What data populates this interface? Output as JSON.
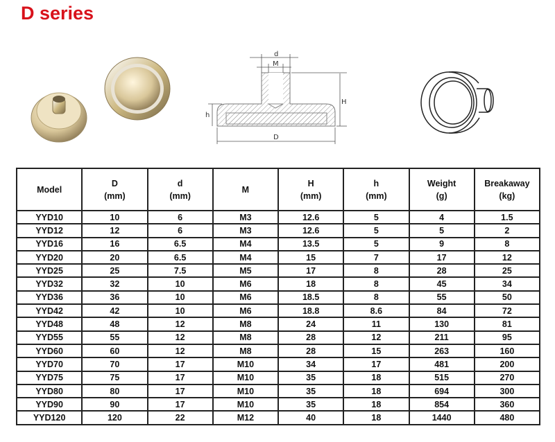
{
  "title": "D series",
  "diagram": {
    "label_d": "d",
    "label_M": "M",
    "label_H": "H",
    "label_h": "h",
    "label_D": "D"
  },
  "colors": {
    "title": "#d8121b",
    "border": "#222222"
  },
  "table": {
    "headers": [
      {
        "line1": "Model",
        "line2": ""
      },
      {
        "line1": "D",
        "line2": "(mm)"
      },
      {
        "line1": "d",
        "line2": "(mm)"
      },
      {
        "line1": "M",
        "line2": ""
      },
      {
        "line1": "H",
        "line2": "(mm)"
      },
      {
        "line1": "h",
        "line2": "(mm)"
      },
      {
        "line1": "Weight",
        "line2": "(g)"
      },
      {
        "line1": "Breakaway",
        "line2": "(kg)"
      }
    ],
    "rows": [
      [
        "YYD10",
        "10",
        "6",
        "M3",
        "12.6",
        "5",
        "4",
        "1.5"
      ],
      [
        "YYD12",
        "12",
        "6",
        "M3",
        "12.6",
        "5",
        "5",
        "2"
      ],
      [
        "YYD16",
        "16",
        "6.5",
        "M4",
        "13.5",
        "5",
        "9",
        "8"
      ],
      [
        "YYD20",
        "20",
        "6.5",
        "M4",
        "15",
        "7",
        "17",
        "12"
      ],
      [
        "YYD25",
        "25",
        "7.5",
        "M5",
        "17",
        "8",
        "28",
        "25"
      ],
      [
        "YYD32",
        "32",
        "10",
        "M6",
        "18",
        "8",
        "45",
        "34"
      ],
      [
        "YYD36",
        "36",
        "10",
        "M6",
        "18.5",
        "8",
        "55",
        "50"
      ],
      [
        "YYD42",
        "42",
        "10",
        "M6",
        "18.8",
        "8.6",
        "84",
        "72"
      ],
      [
        "YYD48",
        "48",
        "12",
        "M8",
        "24",
        "11",
        "130",
        "81"
      ],
      [
        "YYD55",
        "55",
        "12",
        "M8",
        "28",
        "12",
        "211",
        "95"
      ],
      [
        "YYD60",
        "60",
        "12",
        "M8",
        "28",
        "15",
        "263",
        "160"
      ],
      [
        "YYD70",
        "70",
        "17",
        "M10",
        "34",
        "17",
        "481",
        "200"
      ],
      [
        "YYD75",
        "75",
        "17",
        "M10",
        "35",
        "18",
        "515",
        "270"
      ],
      [
        "YYD80",
        "80",
        "17",
        "M10",
        "35",
        "18",
        "694",
        "300"
      ],
      [
        "YYD90",
        "90",
        "17",
        "M10",
        "35",
        "18",
        "854",
        "360"
      ],
      [
        "YYD120",
        "120",
        "22",
        "M12",
        "40",
        "18",
        "1440",
        "480"
      ]
    ]
  }
}
